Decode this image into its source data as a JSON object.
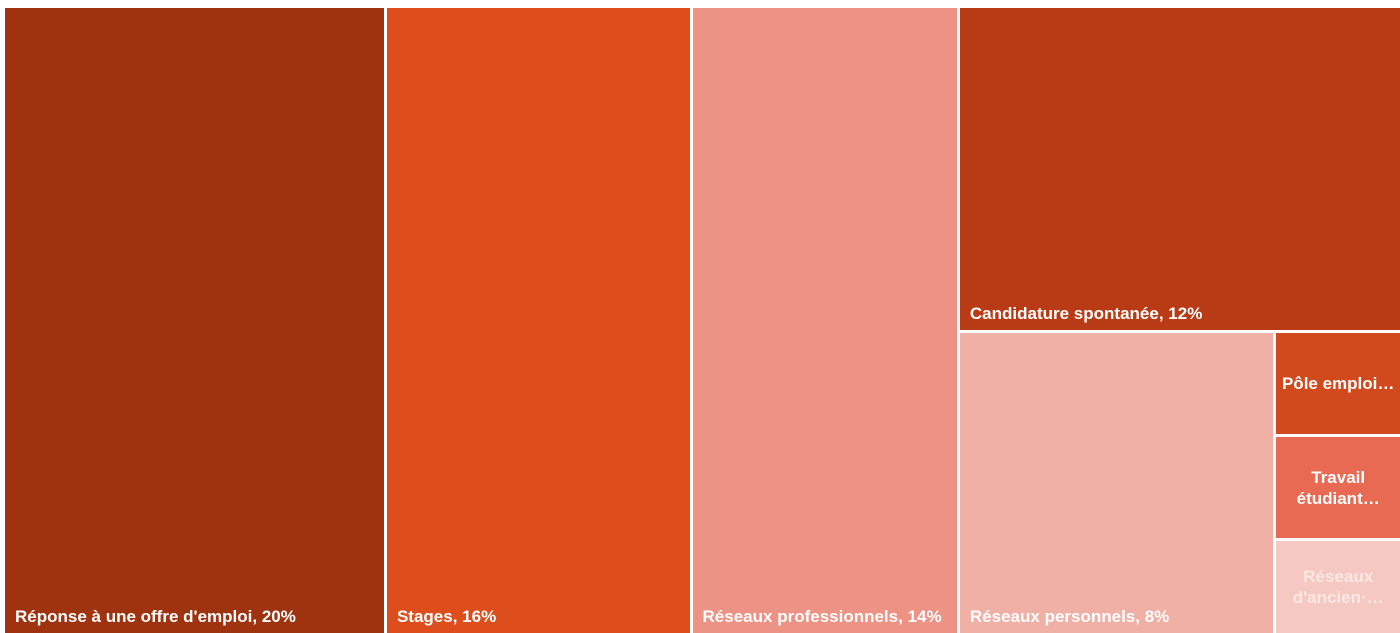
{
  "chart_data": {
    "type": "treemap",
    "categories": [
      "Réponse à une offre d'emploi",
      "Stages",
      "Réseaux professionnels",
      "Candidature spontanée",
      "Réseaux personnels",
      "Pôle emploi…",
      "Travail étudiant…",
      "Réseaux d'ancien·…"
    ],
    "values": [
      20,
      16,
      14,
      12,
      8,
      1.1,
      1.1,
      1.0
    ],
    "value_labels": [
      "20%",
      "16%",
      "14%",
      "12%",
      "8%",
      null,
      null,
      null
    ],
    "colors": [
      "#a0330f",
      "#de4e1d",
      "#ec9385",
      "#b93b16",
      "#f0b0a6",
      "#d04a1e",
      "#e86a53",
      "#f5c9c2"
    ]
  }
}
